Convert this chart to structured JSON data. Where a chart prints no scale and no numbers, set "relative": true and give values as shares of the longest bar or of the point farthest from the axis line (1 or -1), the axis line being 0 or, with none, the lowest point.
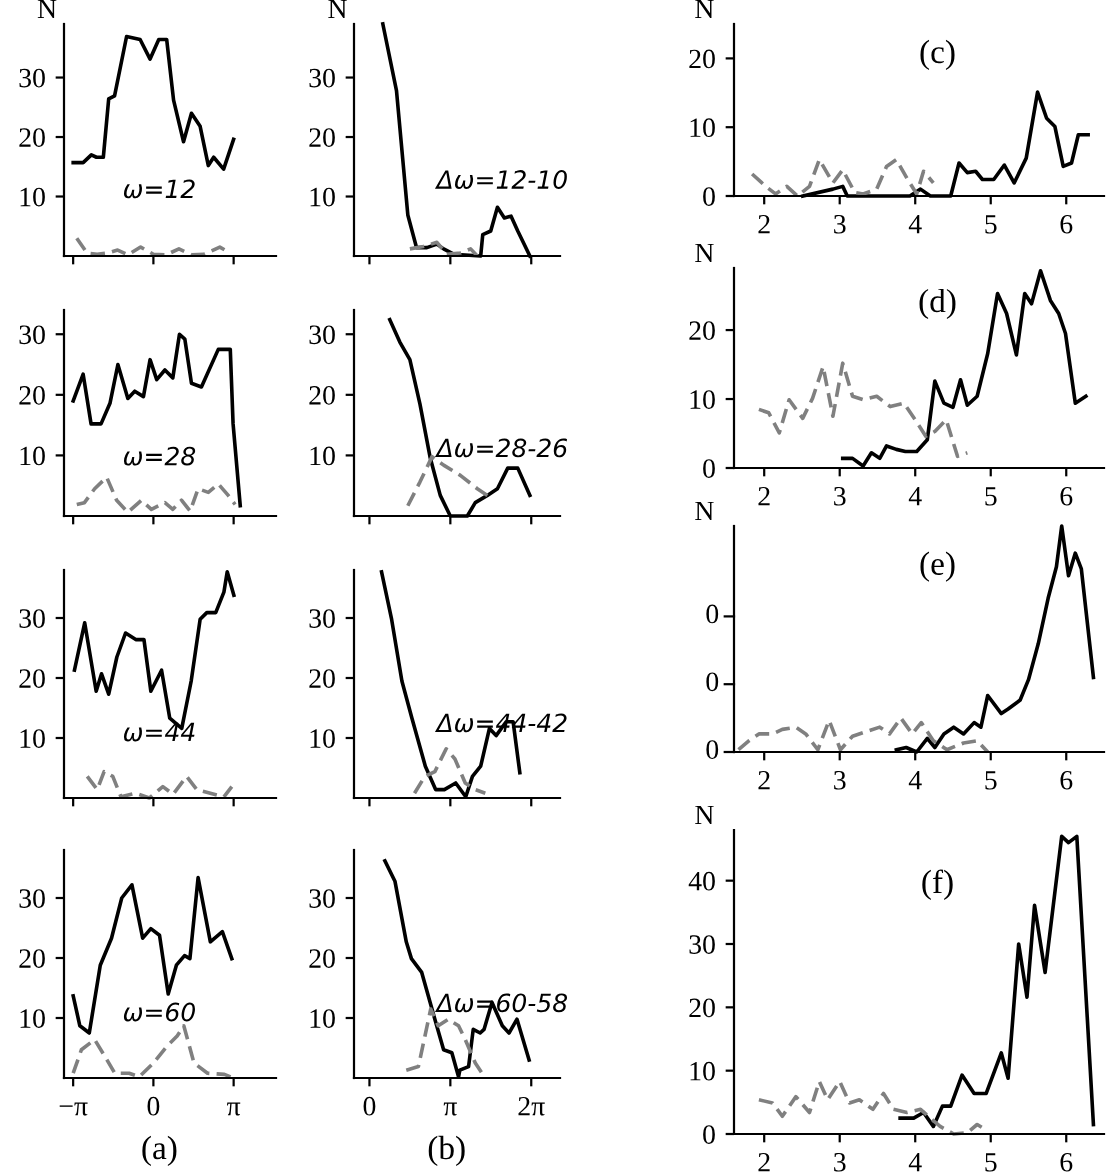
{
  "chart_data": [
    {
      "type": "line",
      "ylabel": "N",
      "annotations": [
        "ω=12"
      ],
      "xlim": [
        -3.5,
        4.8
      ],
      "ylim": [
        0,
        39
      ],
      "xticks": [
        {
          "value": -3.1416,
          "label": null
        },
        {
          "value": 0,
          "label": null
        },
        {
          "value": 3.1416,
          "label": null
        }
      ],
      "yticks": [
        10,
        20,
        30
      ],
      "tick_labels": "y",
      "series": [
        {
          "color": "#000000",
          "line_style": "solid",
          "x": [
            -3.14,
            -2.75,
            -2.43,
            -2.23,
            -1.96,
            -1.75,
            -1.52,
            -1.05,
            -0.52,
            -0.13,
            0.21,
            0.52,
            0.79,
            1.18,
            1.49,
            1.83,
            2.15,
            2.36,
            2.75,
            3.14
          ],
          "values": [
            15.7,
            15.7,
            17,
            16.6,
            16.6,
            26.4,
            26.9,
            36.9,
            36.4,
            33.1,
            36.4,
            36.4,
            26.2,
            19.2,
            24,
            21.8,
            15.2,
            16.6,
            14.6,
            19.6
          ]
        },
        {
          "color": "#808080",
          "line_style": "dashed",
          "x": [
            -3.0,
            -2.6,
            -2.2,
            -1.8,
            -1.4,
            -1.0,
            -0.5,
            0,
            0.5,
            1.0,
            1.5,
            2.0,
            2.6,
            3.0
          ],
          "values": [
            3,
            0.5,
            0.3,
            0.5,
            1,
            0.2,
            1.5,
            0.3,
            0.2,
            1.2,
            0.2,
            0.3,
            1.5,
            0.5
          ]
        }
      ]
    },
    {
      "type": "line",
      "ylabel": "N",
      "annotations": [
        "Δω=12-10"
      ],
      "xlim": [
        -0.6,
        7.4
      ],
      "ylim": [
        0,
        39
      ],
      "xticks": [
        {
          "value": 0,
          "label": null
        },
        {
          "value": 3.1416,
          "label": null
        },
        {
          "value": 6.2832,
          "label": null
        }
      ],
      "yticks": [
        10,
        20,
        30
      ],
      "tick_labels": "y",
      "series": [
        {
          "color": "#000000",
          "line_style": "solid",
          "x": [
            0.52,
            1.05,
            1.49,
            1.83,
            2.23,
            2.62,
            2.88,
            3.27,
            4.32,
            4.4,
            4.71,
            4.97,
            5.24,
            5.5,
            5.76,
            6.23
          ],
          "values": [
            39,
            27.8,
            6.9,
            1.4,
            1.4,
            2,
            1.2,
            0.3,
            0,
            3.6,
            4.2,
            8.2,
            6.4,
            6.7,
            4.2,
            0
          ]
        },
        {
          "color": "#808080",
          "line_style": "dashed",
          "x": [
            1.57,
            2.09,
            2.62,
            3.0,
            3.53,
            3.93,
            4.19
          ],
          "values": [
            1.2,
            1.6,
            2.3,
            0.3,
            0.5,
            1.2,
            0
          ]
        }
      ]
    },
    {
      "type": "line",
      "ylabel": "N",
      "annotations": [
        "(c)"
      ],
      "xlim": [
        1.6,
        6.5
      ],
      "ylim": [
        0,
        25
      ],
      "xticks": [
        2,
        3,
        4,
        5,
        6
      ],
      "yticks": [
        0,
        10,
        20
      ],
      "series": [
        {
          "color": "#000000",
          "line_style": "solid",
          "x": [
            2.51,
            2.91,
            3.04,
            3.1,
            3.93,
            4.07,
            4.2,
            4.47,
            4.58,
            4.69,
            4.8,
            4.89,
            5.04,
            5.18,
            5.31,
            5.47,
            5.62,
            5.74,
            5.85,
            5.96,
            6.07,
            6.16,
            6.29
          ],
          "values": [
            0,
            1,
            1.4,
            0,
            0,
            1,
            0,
            0,
            4.8,
            3.4,
            3.6,
            2.4,
            2.4,
            4.5,
            1.9,
            5.5,
            15.1,
            11.3,
            10.1,
            4.3,
            4.8,
            8.9,
            8.9
          ]
        },
        {
          "color": "#808080",
          "line_style": "dashed",
          "x": [
            1.84,
            2.02,
            2.15,
            2.3,
            2.44,
            2.6,
            2.73,
            2.91,
            3.04,
            3.2,
            3.31,
            3.49,
            3.62,
            3.75,
            3.9,
            4.02,
            4.11,
            4.24
          ],
          "values": [
            3.2,
            1.4,
            0.3,
            1.4,
            0,
            1.4,
            5.3,
            1.9,
            3.8,
            0.5,
            0.3,
            1,
            4.3,
            5.3,
            2.4,
            0.3,
            3.6,
            1.9
          ]
        }
      ]
    },
    {
      "type": "line",
      "annotations": [
        "ω=28"
      ],
      "xlim": [
        -3.5,
        4.8
      ],
      "ylim": [
        0,
        34
      ],
      "xticks": [
        {
          "value": -3.1416,
          "label": null
        },
        {
          "value": 0,
          "label": null
        },
        {
          "value": 3.1416,
          "label": null
        }
      ],
      "yticks": [
        10,
        20,
        30
      ],
      "tick_labels": "y",
      "series": [
        {
          "color": "#000000",
          "line_style": "solid",
          "x": [
            -3.14,
            -2.75,
            -2.44,
            -2.05,
            -1.7,
            -1.39,
            -1.0,
            -0.73,
            -0.39,
            -0.13,
            0.13,
            0.45,
            0.76,
            1.02,
            1.23,
            1.49,
            1.88,
            2.54,
            3.01,
            3.12,
            3.4
          ],
          "values": [
            19,
            23.4,
            15.2,
            15.2,
            18.6,
            25,
            19.4,
            20.6,
            19.7,
            25.8,
            22.5,
            24.1,
            22.8,
            30,
            29.2,
            21.9,
            21.3,
            27.5,
            27.5,
            15.2,
            1.7
          ]
        },
        {
          "color": "#808080",
          "line_style": "dashed",
          "x": [
            -3.0,
            -2.7,
            -2.3,
            -1.83,
            -1.44,
            -1.0,
            -0.47,
            -0.08,
            0.45,
            0.76,
            1.1,
            1.44,
            1.75,
            2.15,
            2.54,
            2.93,
            3.2
          ],
          "values": [
            1.9,
            2.2,
            4.5,
            6.4,
            2.6,
            0.6,
            2.6,
            1.1,
            2.2,
            1.1,
            2.6,
            0.8,
            4.5,
            3.9,
            5.3,
            3.4,
            1.9
          ]
        }
      ]
    },
    {
      "type": "line",
      "annotations": [
        "Δω=28-26"
      ],
      "xlim": [
        -0.6,
        7.4
      ],
      "ylim": [
        0,
        34
      ],
      "xticks": [
        {
          "value": 0,
          "label": null
        },
        {
          "value": 3.1416,
          "label": null
        },
        {
          "value": 6.2832,
          "label": null
        }
      ],
      "yticks": [
        10,
        20,
        30
      ],
      "tick_labels": "y",
      "series": [
        {
          "color": "#000000",
          "line_style": "solid",
          "x": [
            0.79,
            1.18,
            1.57,
            1.96,
            2.36,
            2.75,
            3.14,
            3.8,
            4.11,
            4.58,
            4.97,
            5.37,
            5.76,
            6.23
          ],
          "values": [
            32.4,
            28.7,
            25.8,
            18.5,
            9.6,
            3.4,
            0,
            0,
            2.2,
            3.4,
            4.5,
            7.9,
            7.9,
            3.4
          ]
        },
        {
          "color": "#808080",
          "line_style": "dashed",
          "x": [
            1.49,
            1.96,
            2.43,
            2.88,
            3.53,
            4.19,
            4.58
          ],
          "values": [
            1.7,
            5.6,
            9.8,
            8.4,
            6.7,
            4.5,
            3.4
          ]
        }
      ]
    },
    {
      "type": "line",
      "ylabel": "N",
      "annotations": [
        "(d)"
      ],
      "xlim": [
        1.6,
        6.5
      ],
      "ylim": [
        0,
        29
      ],
      "xticks": [
        2,
        3,
        4,
        5,
        6
      ],
      "yticks": [
        0,
        10,
        20
      ],
      "series": [
        {
          "color": "#000000",
          "line_style": "solid",
          "x": [
            3.04,
            3.17,
            3.31,
            3.42,
            3.53,
            3.62,
            3.75,
            3.87,
            4.02,
            4.16,
            4.26,
            4.38,
            4.5,
            4.6,
            4.69,
            4.82,
            4.96,
            5.09,
            5.21,
            5.34,
            5.45,
            5.54,
            5.66,
            5.79,
            5.9,
            5.99,
            6.12,
            6.26
          ],
          "values": [
            1.4,
            1.4,
            0.3,
            2.2,
            1.4,
            3.2,
            2.7,
            2.4,
            2.4,
            4.1,
            12.6,
            9.4,
            8.8,
            12.8,
            9.1,
            10.4,
            16.6,
            25.3,
            22.4,
            16.4,
            25.3,
            23.8,
            28.6,
            24.3,
            22.4,
            19.5,
            9.4,
            10.4
          ]
        },
        {
          "color": "#808080",
          "line_style": "dashed",
          "x": [
            1.93,
            2.06,
            2.2,
            2.33,
            2.51,
            2.64,
            2.78,
            2.91,
            3.04,
            3.17,
            3.31,
            3.49,
            3.67,
            3.85,
            4.0,
            4.14,
            4.26,
            4.41,
            4.56,
            4.69
          ],
          "values": [
            8.5,
            8.0,
            5.1,
            9.9,
            7.2,
            10.1,
            14.7,
            7.5,
            15.2,
            10.4,
            9.9,
            10.4,
            8.9,
            9.4,
            7.0,
            4.6,
            5.3,
            7.0,
            1.7,
            2.2
          ]
        }
      ]
    },
    {
      "type": "line",
      "annotations": [
        "ω=44"
      ],
      "xlim": [
        -3.5,
        4.8
      ],
      "ylim": [
        0,
        38
      ],
      "xticks": [
        {
          "value": -3.1416,
          "label": null
        },
        {
          "value": 0,
          "label": null
        },
        {
          "value": 3.1416,
          "label": null
        }
      ],
      "yticks": [
        10,
        20,
        30
      ],
      "tick_labels": "y",
      "series": [
        {
          "color": "#000000",
          "line_style": "solid",
          "x": [
            -3.09,
            -2.69,
            -2.24,
            -2.03,
            -1.75,
            -1.43,
            -1.09,
            -0.69,
            -0.37,
            -0.1,
            0.32,
            0.64,
            1.11,
            1.48,
            1.83,
            2.09,
            2.44,
            2.76,
            2.89,
            3.15
          ],
          "values": [
            21.3,
            29.2,
            17.8,
            20.7,
            17.3,
            23.5,
            27.5,
            26.4,
            26.4,
            17.8,
            21.3,
            13.3,
            11.6,
            19.5,
            29.8,
            30.9,
            30.9,
            34.3,
            37.7,
            33.8
          ]
        },
        {
          "color": "#808080",
          "line_style": "dashed",
          "x": [
            -2.59,
            -2.2,
            -1.93,
            -1.59,
            -1.27,
            -0.69,
            -0.16,
            0.37,
            0.77,
            1.3,
            1.7,
            2.23,
            2.76,
            3.07
          ],
          "values": [
            3.6,
            1.4,
            4.4,
            3.6,
            0.2,
            0.8,
            0,
            1.9,
            0.6,
            3.6,
            1.4,
            0.8,
            0.2,
            1.9
          ]
        }
      ]
    },
    {
      "type": "line",
      "annotations": [
        "Δω=44-42"
      ],
      "xlim": [
        -0.6,
        7.4
      ],
      "ylim": [
        0,
        38
      ],
      "xticks": [
        {
          "value": 0,
          "label": null
        },
        {
          "value": 3.1416,
          "label": null
        },
        {
          "value": 6.2832,
          "label": null
        }
      ],
      "yticks": [
        10,
        20,
        30
      ],
      "tick_labels": "y",
      "series": [
        {
          "color": "#000000",
          "line_style": "solid",
          "x": [
            0.47,
            0.86,
            1.26,
            1.65,
            2.17,
            2.57,
            2.91,
            3.35,
            3.74,
            4.0,
            4.32,
            4.66,
            4.92,
            5.31,
            5.58,
            5.84
          ],
          "values": [
            37.7,
            29.8,
            19.5,
            13.3,
            5.3,
            1.4,
            1.4,
            2.5,
            0.2,
            3.6,
            5.3,
            11.6,
            10.4,
            12.7,
            12.7,
            4.2
          ]
        },
        {
          "color": "#808080",
          "line_style": "dashed",
          "x": [
            1.75,
            2.15,
            2.54,
            2.98,
            3.32,
            3.72,
            4.11,
            4.5
          ],
          "values": [
            0.8,
            3.6,
            4.4,
            8.2,
            6.5,
            2.5,
            1.4,
            0.8
          ]
        }
      ]
    },
    {
      "type": "line",
      "ylabel": "N",
      "annotations": [
        "(e)",
        "0",
        "0",
        "0"
      ],
      "relative": true,
      "xlim": [
        1.6,
        6.5
      ],
      "xticks": [
        2,
        3,
        4,
        5,
        6
      ],
      "series": [
        {
          "color": "#000000",
          "line_style": "solid",
          "x": [
            3.75,
            3.88,
            4.02,
            4.16,
            4.26,
            4.38,
            4.51,
            4.64,
            4.78,
            4.87,
            4.96,
            5.14,
            5.23,
            5.39,
            5.5,
            5.63,
            5.76,
            5.87,
            5.94,
            6.03,
            6.12,
            6.2,
            6.36
          ],
          "values": [
            0.01,
            0.02,
            0,
            0.06,
            0.02,
            0.08,
            0.11,
            0.08,
            0.13,
            0.11,
            0.25,
            0.17,
            0.19,
            0.23,
            0.32,
            0.48,
            0.68,
            0.82,
            1,
            0.78,
            0.88,
            0.81,
            0.33
          ]
        },
        {
          "color": "#808080",
          "line_style": "dashed",
          "x": [
            1.66,
            1.8,
            1.93,
            2.11,
            2.24,
            2.42,
            2.55,
            2.71,
            2.86,
            3.01,
            3.17,
            3.35,
            3.53,
            3.66,
            3.81,
            3.96,
            4.08,
            4.24,
            4.42,
            4.64,
            4.82,
            4.96
          ],
          "values": [
            0.01,
            0.05,
            0.08,
            0.08,
            0.1,
            0.11,
            0.08,
            0.01,
            0.14,
            0.01,
            0.07,
            0.09,
            0.11,
            0.08,
            0.15,
            0.08,
            0.13,
            0.05,
            0.01,
            0.04,
            0.05,
            0
          ]
        }
      ]
    },
    {
      "type": "line",
      "annotations": [
        "ω=60",
        "(a)"
      ],
      "xlim": [
        -3.5,
        4.8
      ],
      "ylim": [
        0,
        38
      ],
      "xticks": [
        {
          "value": -3.1416,
          "label": "−π"
        },
        {
          "value": 0,
          "label": "0"
        },
        {
          "value": 3.1416,
          "label": "π"
        }
      ],
      "yticks": [
        10,
        20,
        30
      ],
      "series": [
        {
          "color": "#000000",
          "line_style": "solid",
          "x": [
            -3.14,
            -2.88,
            -2.51,
            -2.08,
            -1.64,
            -1.24,
            -0.84,
            -0.42,
            -0.1,
            0.24,
            0.58,
            0.9,
            1.22,
            1.43,
            1.75,
            2.23,
            2.7,
            3.07
          ],
          "values": [
            13.7,
            8.7,
            7.5,
            18.8,
            23.3,
            30,
            32.2,
            23.3,
            24.9,
            23.8,
            14.0,
            18.8,
            20.4,
            19.9,
            33.4,
            22.7,
            24.4,
            19.9
          ]
        },
        {
          "color": "#808080",
          "line_style": "dashed",
          "x": [
            -3.14,
            -2.82,
            -2.3,
            -1.9,
            -1.51,
            -0.95,
            -0.55,
            0,
            0.53,
            0.93,
            1.19,
            1.59,
            2.12,
            2.78,
            3.14
          ],
          "values": [
            0.8,
            4.7,
            6.4,
            3.6,
            0.8,
            0.8,
            0.2,
            2.5,
            5.3,
            7.0,
            8.7,
            2.5,
            0.8,
            0.6,
            0
          ]
        }
      ]
    },
    {
      "type": "line",
      "annotations": [
        "Δω=60-58",
        "(b)"
      ],
      "xlim": [
        -0.6,
        7.4
      ],
      "ylim": [
        0,
        38
      ],
      "xticks": [
        {
          "value": 0,
          "label": "0"
        },
        {
          "value": 3.1416,
          "label": "π"
        },
        {
          "value": 6.2832,
          "label": "2π"
        }
      ],
      "yticks": [
        10,
        20,
        30
      ],
      "series": [
        {
          "color": "#000000",
          "line_style": "solid",
          "x": [
            0.6,
            0.99,
            1.43,
            1.63,
            2.03,
            2.54,
            2.88,
            3.2,
            3.46,
            3.51,
            3.85,
            4.03,
            4.3,
            4.45,
            4.76,
            5.16,
            5.42,
            5.73,
            6.2
          ],
          "values": [
            36.2,
            32.8,
            22.7,
            19.9,
            17.6,
            9.8,
            4.7,
            4.2,
            0.2,
            1.3,
            1.9,
            8.1,
            7.5,
            8.1,
            12.6,
            8.7,
            7.5,
            9.8,
            3.0
          ]
        },
        {
          "color": "#808080",
          "line_style": "dashed",
          "x": [
            1.43,
            1.9,
            2.38,
            2.67,
            3.06,
            3.46,
            3.72,
            4.11,
            4.37
          ],
          "values": [
            1.3,
            1.9,
            11.5,
            8.7,
            9.8,
            8.7,
            6.4,
            2.5,
            0.8
          ]
        }
      ]
    },
    {
      "type": "line",
      "ylabel": "N",
      "annotations": [
        "(f)"
      ],
      "xlim": [
        1.6,
        6.5
      ],
      "ylim": [
        0,
        48
      ],
      "xticks": [
        2,
        3,
        4,
        5,
        6
      ],
      "yticks": [
        0,
        10,
        20,
        30,
        40
      ],
      "series": [
        {
          "color": "#000000",
          "line_style": "solid",
          "x": [
            3.8,
            3.98,
            4.11,
            4.24,
            4.36,
            4.47,
            4.62,
            4.78,
            4.94,
            5.14,
            5.23,
            5.37,
            5.48,
            5.58,
            5.72,
            5.94,
            6.03,
            6.14,
            6.36
          ],
          "values": [
            2.5,
            2.5,
            3.4,
            1.2,
            4.4,
            4.4,
            9.3,
            6.4,
            6.4,
            12.8,
            8.8,
            30,
            21.6,
            36.1,
            25.5,
            47,
            46,
            47,
            1.5
          ]
        },
        {
          "color": "#808080",
          "line_style": "dashed",
          "x": [
            1.93,
            2.11,
            2.24,
            2.42,
            2.6,
            2.73,
            2.84,
            3.0,
            3.13,
            3.26,
            3.44,
            3.58,
            3.71,
            3.89,
            4.07,
            4.2,
            4.33,
            4.51,
            4.69,
            4.82,
            4.96
          ],
          "values": [
            5.4,
            4.9,
            2.8,
            5.9,
            3.4,
            8.3,
            5.4,
            8.3,
            4.9,
            5.4,
            3.9,
            6.4,
            3.9,
            3.4,
            3.9,
            2.5,
            1.2,
            0,
            0.2,
            1.5,
            0.5
          ]
        }
      ]
    }
  ]
}
